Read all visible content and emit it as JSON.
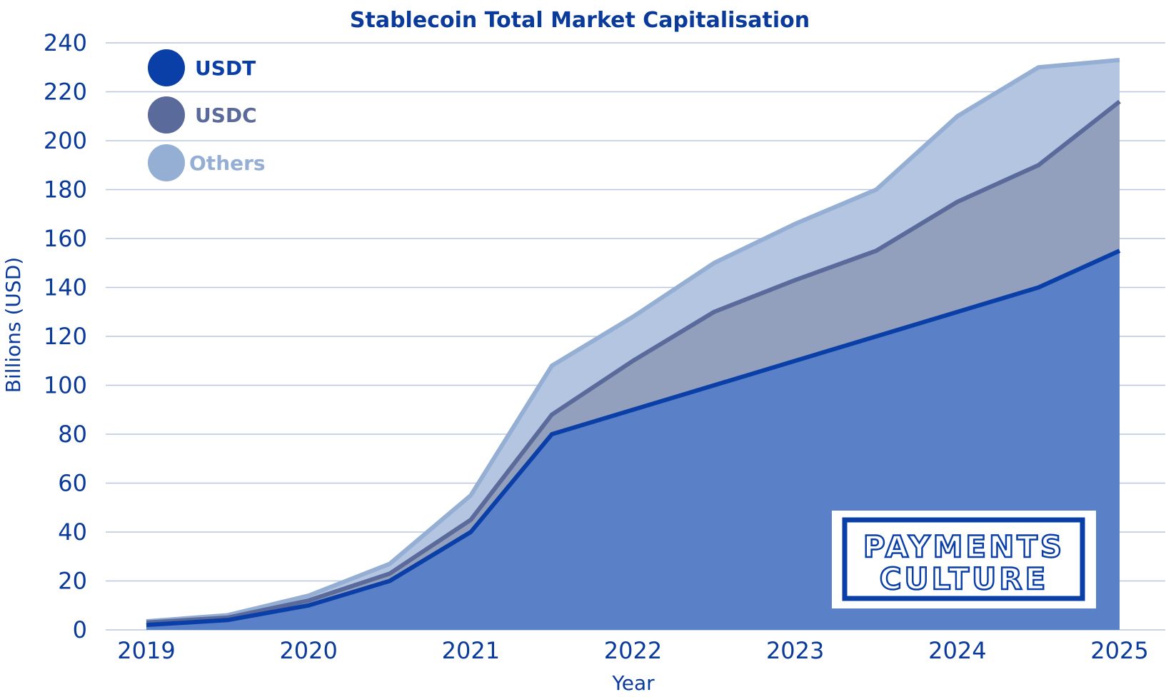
{
  "chart_data": {
    "type": "area",
    "title": "Stablecoin Total Market Capitalisation",
    "xlabel": "Year",
    "ylabel": "Billions (USD)",
    "ylim": [
      0,
      240
    ],
    "y_ticks": [
      0,
      20,
      40,
      60,
      80,
      100,
      120,
      140,
      160,
      180,
      200,
      220,
      240
    ],
    "x_ticks": [
      "2019",
      "2020",
      "2021",
      "2022",
      "2023",
      "2024",
      "2025"
    ],
    "x": [
      2019,
      2019.5,
      2020,
      2020.5,
      2021,
      2021.5,
      2022,
      2022.5,
      2023,
      2023.5,
      2024,
      2024.5,
      2025
    ],
    "stacked": true,
    "grid": true,
    "legend_position": "top-left",
    "series": [
      {
        "name": "USDT",
        "color": "#0a3fa8",
        "fill": "#5a80c8",
        "values": [
          2,
          4,
          10,
          20,
          40,
          80,
          90,
          100,
          110,
          120,
          130,
          140,
          155
        ]
      },
      {
        "name": "USDC",
        "color": "#5a6a9a",
        "fill": "#93a0bd",
        "values": [
          1,
          1,
          2,
          3,
          5,
          8,
          20,
          30,
          33,
          35,
          45,
          50,
          61
        ]
      },
      {
        "name": "Others",
        "color": "#94aed4",
        "fill": "#b3c5e0",
        "values": [
          0.5,
          1,
          2,
          4,
          10,
          20,
          18,
          20,
          23,
          25,
          35,
          40,
          17
        ]
      }
    ],
    "top_line_end": 233
  },
  "logo": {
    "line1": "PAYMENTS",
    "line2": "CULTURE",
    "color": "#0a3fa8"
  }
}
